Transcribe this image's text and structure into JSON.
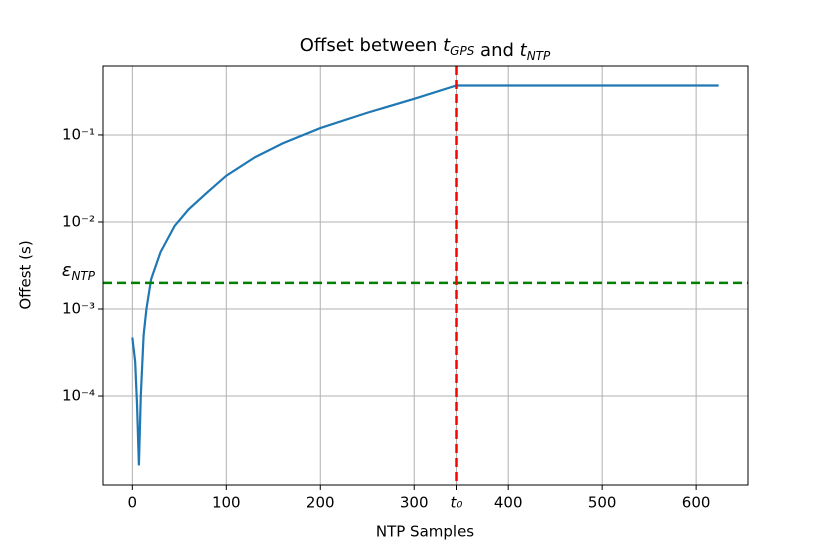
{
  "chart_data": {
    "type": "line",
    "title": [
      {
        "text": "Offset between "
      },
      {
        "text": "t",
        "sub": "GPS"
      },
      {
        "text": " and "
      },
      {
        "text": "t",
        "sub": "NTP"
      }
    ],
    "xlabel": "NTP Samples",
    "ylabel": "Offest (s)",
    "log_y": true,
    "grid": true,
    "xlim": [
      -31.2,
      655.2
    ],
    "ylim": [
      9.5e-06,
      0.62
    ],
    "xticks": [
      0,
      100,
      200,
      300,
      {
        "value": 345,
        "label": "t₀"
      },
      400,
      500,
      600
    ],
    "yticks": [
      {
        "value": 0.0001,
        "label": "10⁻⁴"
      },
      {
        "value": 0.001,
        "label": "10⁻³"
      },
      {
        "value": 0.01,
        "label": "10⁻²"
      },
      {
        "value": 0.1,
        "label": "10⁻¹"
      }
    ],
    "series": [
      {
        "color": "#1f77b4",
        "x": [
          0,
          3,
          5,
          7,
          9,
          12,
          15,
          20,
          30,
          45,
          60,
          80,
          100,
          130,
          160,
          200,
          250,
          300,
          345,
          400,
          500,
          624
        ],
        "values": [
          0.00047,
          0.00025,
          8e-05,
          1.6e-05,
          0.0001,
          0.0005,
          0.001,
          0.0022,
          0.0045,
          0.009,
          0.014,
          0.022,
          0.034,
          0.055,
          0.08,
          0.12,
          0.18,
          0.26,
          0.37,
          0.37,
          0.37,
          0.37
        ]
      }
    ],
    "hlines": [
      {
        "value": 0.002,
        "label": "ε",
        "sub": "NTP",
        "color": "#008000"
      }
    ],
    "vlines": [
      {
        "value": 345,
        "color": "#ff0000"
      }
    ]
  }
}
